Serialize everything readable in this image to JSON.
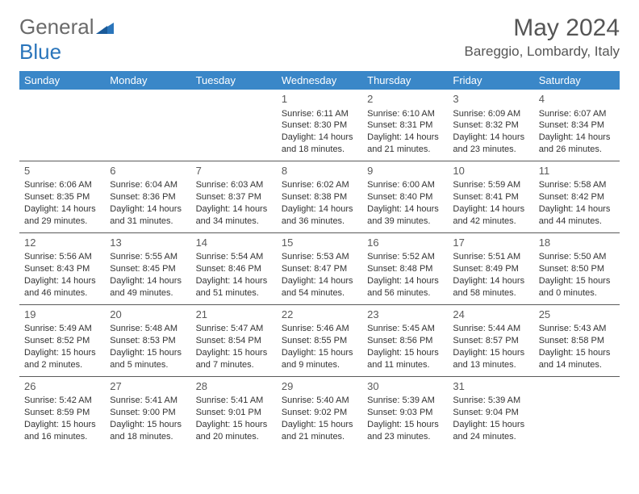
{
  "logo": {
    "text1": "General",
    "text2": "Blue"
  },
  "title": "May 2024",
  "location": "Bareggio, Lombardy, Italy",
  "headers": [
    "Sunday",
    "Monday",
    "Tuesday",
    "Wednesday",
    "Thursday",
    "Friday",
    "Saturday"
  ],
  "header_bg": "#3a87c8",
  "weeks": [
    [
      null,
      null,
      null,
      {
        "d": "1",
        "sr": "6:11 AM",
        "ss": "8:30 PM",
        "dl": "14 hours and 18 minutes."
      },
      {
        "d": "2",
        "sr": "6:10 AM",
        "ss": "8:31 PM",
        "dl": "14 hours and 21 minutes."
      },
      {
        "d": "3",
        "sr": "6:09 AM",
        "ss": "8:32 PM",
        "dl": "14 hours and 23 minutes."
      },
      {
        "d": "4",
        "sr": "6:07 AM",
        "ss": "8:34 PM",
        "dl": "14 hours and 26 minutes."
      }
    ],
    [
      {
        "d": "5",
        "sr": "6:06 AM",
        "ss": "8:35 PM",
        "dl": "14 hours and 29 minutes."
      },
      {
        "d": "6",
        "sr": "6:04 AM",
        "ss": "8:36 PM",
        "dl": "14 hours and 31 minutes."
      },
      {
        "d": "7",
        "sr": "6:03 AM",
        "ss": "8:37 PM",
        "dl": "14 hours and 34 minutes."
      },
      {
        "d": "8",
        "sr": "6:02 AM",
        "ss": "8:38 PM",
        "dl": "14 hours and 36 minutes."
      },
      {
        "d": "9",
        "sr": "6:00 AM",
        "ss": "8:40 PM",
        "dl": "14 hours and 39 minutes."
      },
      {
        "d": "10",
        "sr": "5:59 AM",
        "ss": "8:41 PM",
        "dl": "14 hours and 42 minutes."
      },
      {
        "d": "11",
        "sr": "5:58 AM",
        "ss": "8:42 PM",
        "dl": "14 hours and 44 minutes."
      }
    ],
    [
      {
        "d": "12",
        "sr": "5:56 AM",
        "ss": "8:43 PM",
        "dl": "14 hours and 46 minutes."
      },
      {
        "d": "13",
        "sr": "5:55 AM",
        "ss": "8:45 PM",
        "dl": "14 hours and 49 minutes."
      },
      {
        "d": "14",
        "sr": "5:54 AM",
        "ss": "8:46 PM",
        "dl": "14 hours and 51 minutes."
      },
      {
        "d": "15",
        "sr": "5:53 AM",
        "ss": "8:47 PM",
        "dl": "14 hours and 54 minutes."
      },
      {
        "d": "16",
        "sr": "5:52 AM",
        "ss": "8:48 PM",
        "dl": "14 hours and 56 minutes."
      },
      {
        "d": "17",
        "sr": "5:51 AM",
        "ss": "8:49 PM",
        "dl": "14 hours and 58 minutes."
      },
      {
        "d": "18",
        "sr": "5:50 AM",
        "ss": "8:50 PM",
        "dl": "15 hours and 0 minutes."
      }
    ],
    [
      {
        "d": "19",
        "sr": "5:49 AM",
        "ss": "8:52 PM",
        "dl": "15 hours and 2 minutes."
      },
      {
        "d": "20",
        "sr": "5:48 AM",
        "ss": "8:53 PM",
        "dl": "15 hours and 5 minutes."
      },
      {
        "d": "21",
        "sr": "5:47 AM",
        "ss": "8:54 PM",
        "dl": "15 hours and 7 minutes."
      },
      {
        "d": "22",
        "sr": "5:46 AM",
        "ss": "8:55 PM",
        "dl": "15 hours and 9 minutes."
      },
      {
        "d": "23",
        "sr": "5:45 AM",
        "ss": "8:56 PM",
        "dl": "15 hours and 11 minutes."
      },
      {
        "d": "24",
        "sr": "5:44 AM",
        "ss": "8:57 PM",
        "dl": "15 hours and 13 minutes."
      },
      {
        "d": "25",
        "sr": "5:43 AM",
        "ss": "8:58 PM",
        "dl": "15 hours and 14 minutes."
      }
    ],
    [
      {
        "d": "26",
        "sr": "5:42 AM",
        "ss": "8:59 PM",
        "dl": "15 hours and 16 minutes."
      },
      {
        "d": "27",
        "sr": "5:41 AM",
        "ss": "9:00 PM",
        "dl": "15 hours and 18 minutes."
      },
      {
        "d": "28",
        "sr": "5:41 AM",
        "ss": "9:01 PM",
        "dl": "15 hours and 20 minutes."
      },
      {
        "d": "29",
        "sr": "5:40 AM",
        "ss": "9:02 PM",
        "dl": "15 hours and 21 minutes."
      },
      {
        "d": "30",
        "sr": "5:39 AM",
        "ss": "9:03 PM",
        "dl": "15 hours and 23 minutes."
      },
      {
        "d": "31",
        "sr": "5:39 AM",
        "ss": "9:04 PM",
        "dl": "15 hours and 24 minutes."
      },
      null
    ]
  ],
  "labels": {
    "sunrise": "Sunrise: ",
    "sunset": "Sunset: ",
    "daylight": "Daylight: "
  }
}
